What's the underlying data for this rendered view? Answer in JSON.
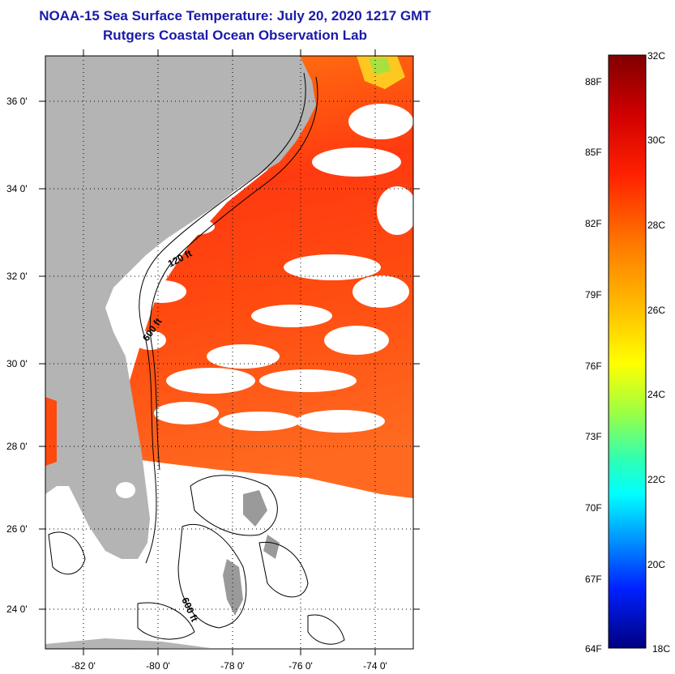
{
  "title_line1": "NOAA-15 Sea Surface Temperature:  July 20, 2020 1217 GMT",
  "title_line2": "Rutgers Coastal Ocean Observation Lab",
  "map": {
    "lat_labels": [
      "36 0'",
      "34 0'",
      "32 0'",
      "30 0'",
      "28 0'",
      "26 0'",
      "24 0'"
    ],
    "lon_labels": [
      "-82 0'",
      "-80 0'",
      "-78 0'",
      "-76 0'",
      "-74 0'"
    ],
    "contour_labels": [
      "120 ft",
      "600 ft",
      "600 ft"
    ]
  },
  "colorbar": {
    "celsius_labels": [
      "32C",
      "30C",
      "28C",
      "26C",
      "24C",
      "22C",
      "20C",
      "18C"
    ],
    "fahrenheit_labels": [
      "88F",
      "85F",
      "82F",
      "79F",
      "76F",
      "73F",
      "70F",
      "67F",
      "64F"
    ],
    "range_celsius": [
      18,
      32
    ]
  },
  "colors": {
    "title": "#1a1aa8",
    "land": "#b4b4b4",
    "ocean_warm": "#ff5a0a",
    "cloud": "#ffffff"
  }
}
